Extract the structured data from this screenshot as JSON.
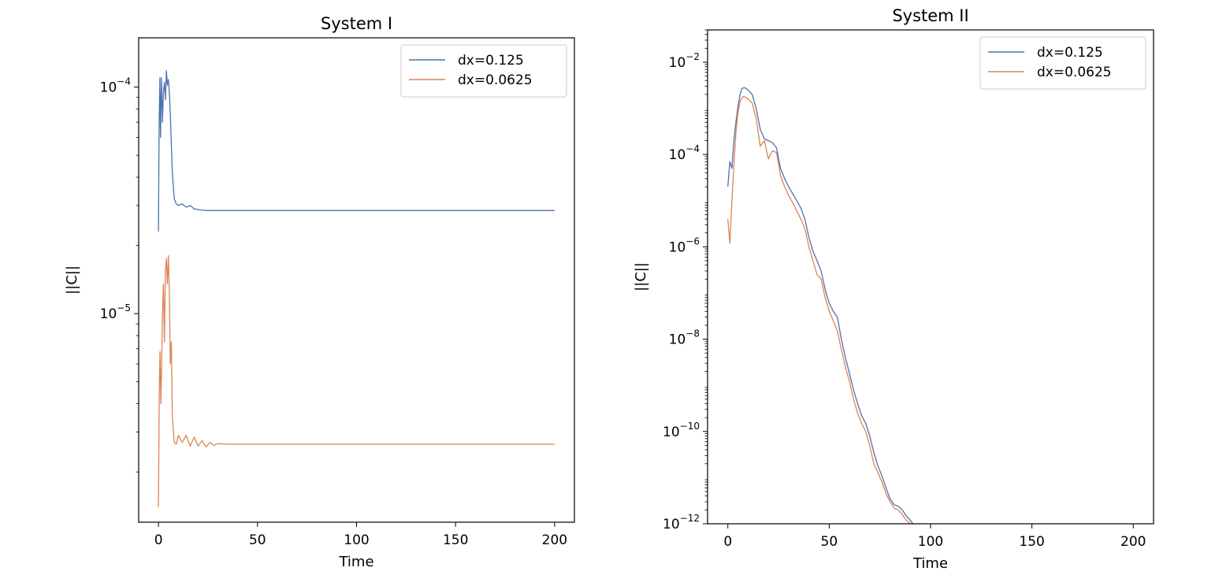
{
  "colors": {
    "series_a": "#4c72b0",
    "series_b": "#dd8452"
  },
  "chart_data": [
    {
      "type": "line",
      "title": "System I",
      "xlabel": "Time",
      "ylabel": "||C||",
      "yscale": "log",
      "xlim": [
        -10,
        210
      ],
      "ylim": [
        1.2e-06,
        0.000165
      ],
      "xticks": [
        0,
        50,
        100,
        150,
        200
      ],
      "xtick_labels": [
        "0",
        "50",
        "100",
        "150",
        "200"
      ],
      "yticks_major": [
        {
          "value": 0.0001,
          "base": "10",
          "exp": "−4"
        },
        {
          "value": 1e-05,
          "base": "10",
          "exp": "−5"
        }
      ],
      "grid": false,
      "legend": "top-right",
      "series": [
        {
          "name": "dx=0.125",
          "color": "#4c72b0",
          "x": [
            0,
            0.3,
            0.7,
            1.0,
            1.5,
            2.0,
            2.5,
            3.0,
            3.5,
            4.0,
            4.5,
            5.0,
            5.5,
            6.0,
            7.0,
            8.0,
            9.0,
            10,
            12,
            14,
            16,
            18,
            20,
            22,
            25,
            30,
            40,
            60,
            100,
            150,
            200
          ],
          "y": [
            2.3e-05,
            6.5e-05,
            0.00011,
            6e-05,
            0.00011,
            7e-05,
            9.5e-05,
            0.000105,
            8.8e-05,
            0.000118,
            0.000102,
            0.000108,
            9.4e-05,
            7.5e-05,
            4.2e-05,
            3.2e-05,
            3.05e-05,
            3e-05,
            3.05e-05,
            2.95e-05,
            3e-05,
            2.9e-05,
            2.88e-05,
            2.86e-05,
            2.85e-05,
            2.85e-05,
            2.85e-05,
            2.85e-05,
            2.85e-05,
            2.85e-05,
            2.85e-05
          ]
        },
        {
          "name": "dx=0.0625",
          "color": "#dd8452",
          "x": [
            0,
            0.4,
            0.8,
            1.2,
            1.6,
            2.0,
            2.5,
            3.0,
            3.5,
            4.0,
            4.5,
            5.0,
            5.5,
            6.0,
            6.5,
            7.0,
            8.0,
            9.0,
            10,
            12,
            14,
            16,
            18,
            20,
            22,
            24,
            26,
            28,
            30,
            35,
            40,
            60,
            100,
            150,
            200
          ],
          "y": [
            1.4e-06,
            4.5e-06,
            6.8e-06,
            4e-06,
            6e-06,
            1e-05,
            1.35e-05,
            7.5e-06,
            1.55e-05,
            1.75e-05,
            1.35e-05,
            1.8e-05,
            1.2e-05,
            6e-06,
            7.5e-06,
            3.5e-06,
            2.7e-06,
            2.65e-06,
            2.9e-06,
            2.7e-06,
            2.9e-06,
            2.6e-06,
            2.85e-06,
            2.6e-06,
            2.75e-06,
            2.58e-06,
            2.7e-06,
            2.62e-06,
            2.67e-06,
            2.65e-06,
            2.65e-06,
            2.65e-06,
            2.65e-06,
            2.65e-06,
            2.65e-06
          ]
        }
      ]
    },
    {
      "type": "line",
      "title": "System II",
      "xlabel": "Time",
      "ylabel": "||C||",
      "yscale": "log",
      "xlim": [
        -10,
        210
      ],
      "ylim": [
        1e-12,
        0.05
      ],
      "xticks": [
        0,
        50,
        100,
        150,
        200
      ],
      "xtick_labels": [
        "0",
        "50",
        "100",
        "150",
        "200"
      ],
      "yticks_major": [
        {
          "value": 0.01,
          "base": "10",
          "exp": "−2"
        },
        {
          "value": 0.0001,
          "base": "10",
          "exp": "−4"
        },
        {
          "value": 1e-06,
          "base": "10",
          "exp": "−6"
        },
        {
          "value": 1e-08,
          "base": "10",
          "exp": "−8"
        },
        {
          "value": 1e-10,
          "base": "10",
          "exp": "−10"
        },
        {
          "value": 1e-12,
          "base": "10",
          "exp": "−12"
        }
      ],
      "grid": false,
      "legend": "top-right",
      "series": [
        {
          "name": "dx=0.125",
          "color": "#4c72b0",
          "x": [
            0,
            1,
            2,
            3,
            4,
            5,
            6,
            7,
            8,
            9,
            10,
            12,
            14,
            16,
            18,
            20,
            22,
            24,
            26,
            28,
            30,
            32,
            34,
            36,
            38,
            40,
            42,
            44,
            46,
            48,
            50,
            52,
            54,
            56,
            58,
            60,
            62,
            64,
            66,
            68,
            70,
            72,
            74,
            76,
            78,
            80,
            82,
            84,
            86,
            88,
            90,
            92
          ],
          "y": [
            2e-05,
            7e-05,
            5e-05,
            0.0002,
            0.0005,
            0.0011,
            0.002,
            0.0027,
            0.0028,
            0.0027,
            0.0025,
            0.002,
            0.001,
            0.00035,
            0.00022,
            0.0002,
            0.00018,
            0.00014,
            5e-05,
            3e-05,
            2e-05,
            1.4e-05,
            1e-05,
            7e-06,
            4e-06,
            1.6e-06,
            8e-07,
            5e-07,
            3e-07,
            1.2e-07,
            6e-08,
            4e-08,
            3e-08,
            1e-08,
            4e-09,
            1.8e-09,
            8e-10,
            4e-10,
            2.2e-10,
            1.5e-10,
            8e-11,
            3.5e-11,
            1.8e-11,
            1.1e-11,
            6e-12,
            3.5e-12,
            2.6e-12,
            2.4e-12,
            2e-12,
            1.5e-12,
            1.2e-12,
            9e-13
          ]
        },
        {
          "name": "dx=0.0625",
          "color": "#dd8452",
          "x": [
            0,
            1,
            2,
            3,
            4,
            5,
            6,
            7,
            8,
            9,
            10,
            12,
            14,
            16,
            18,
            20,
            22,
            24,
            26,
            28,
            30,
            32,
            34,
            36,
            38,
            40,
            42,
            44,
            46,
            48,
            50,
            52,
            54,
            56,
            58,
            60,
            62,
            64,
            66,
            68,
            70,
            72,
            74,
            76,
            78,
            80,
            82,
            84,
            86,
            88,
            90
          ],
          "y": [
            4e-06,
            1.2e-06,
            1e-05,
            6e-05,
            0.0003,
            0.0008,
            0.0014,
            0.0017,
            0.0018,
            0.0017,
            0.0016,
            0.0013,
            0.0006,
            0.00015,
            0.0002,
            8e-05,
            0.00012,
            0.00011,
            3.5e-05,
            2e-05,
            1.3e-05,
            9e-06,
            6e-06,
            4e-06,
            2.5e-06,
            1e-06,
            5e-07,
            2.5e-07,
            2e-07,
            8e-08,
            4e-08,
            2.5e-08,
            1.5e-08,
            6e-09,
            2.5e-09,
            1.2e-09,
            5e-10,
            2.5e-10,
            1.5e-10,
            1e-10,
            5e-11,
            2e-11,
            1.3e-11,
            8e-12,
            4.5e-12,
            3e-12,
            2.2e-12,
            2e-12,
            1.6e-12,
            1.2e-12,
            1e-12
          ]
        }
      ]
    }
  ]
}
